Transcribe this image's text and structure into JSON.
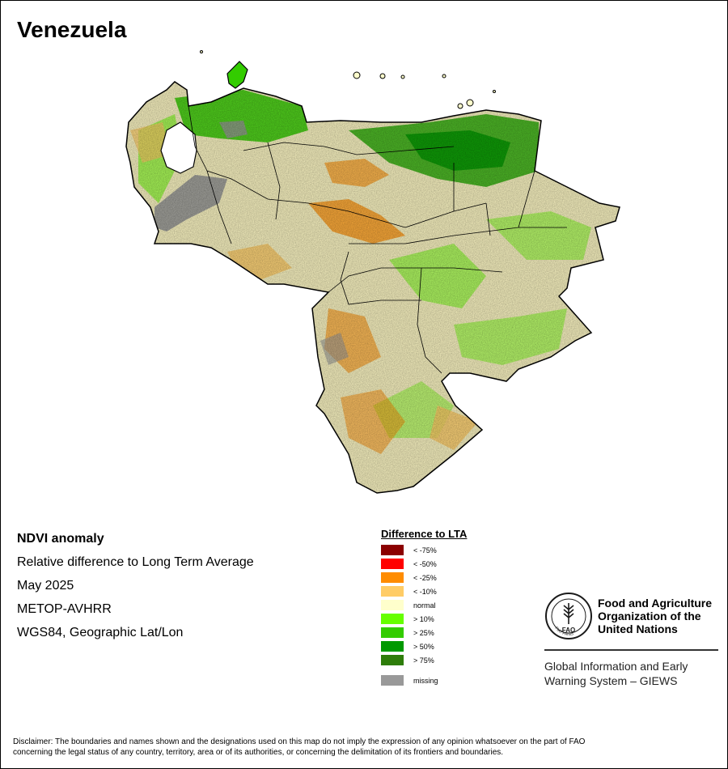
{
  "title": "Venezuela",
  "info": {
    "heading": "NDVI anomaly",
    "description": "Relative difference to Long Term Average",
    "period": "May 2025",
    "sensor": "METOP-AVHRR",
    "projection": "WGS84, Geographic Lat/Lon"
  },
  "legend": {
    "title": "Difference to LTA",
    "items": [
      {
        "label": "< -75%",
        "color": "#8b0000"
      },
      {
        "label": "< -50%",
        "color": "#ff0000"
      },
      {
        "label": "< -25%",
        "color": "#ff8c00"
      },
      {
        "label": "< -10%",
        "color": "#ffcc66"
      },
      {
        "label": "normal",
        "color": "#ffffcc"
      },
      {
        "label": "> 10%",
        "color": "#66ff00"
      },
      {
        "label": "> 25%",
        "color": "#33cc00"
      },
      {
        "label": "> 50%",
        "color": "#009900"
      },
      {
        "label": "> 75%",
        "color": "#2e7d0a"
      }
    ],
    "missing": {
      "label": "missing",
      "color": "#999999"
    }
  },
  "organization": {
    "name_line1": "Food and Agriculture",
    "name_line2": "Organization of the",
    "name_line3": "United Nations",
    "logo_letters": "FAO",
    "logo_motto": "FIAT PANIS",
    "system_line1": "Global Information and Early",
    "system_line2": "Warning System – GIEWS"
  },
  "disclaimer": {
    "line1": "Disclaimer: The boundaries and names shown and the designations used on this map do not imply the expression of any opinion whatsoever on the part of FAO",
    "line2": "concerning the legal status of any country, territory, area or of its authorities, or concerning the delimitation of its frontiers and boundaries."
  }
}
